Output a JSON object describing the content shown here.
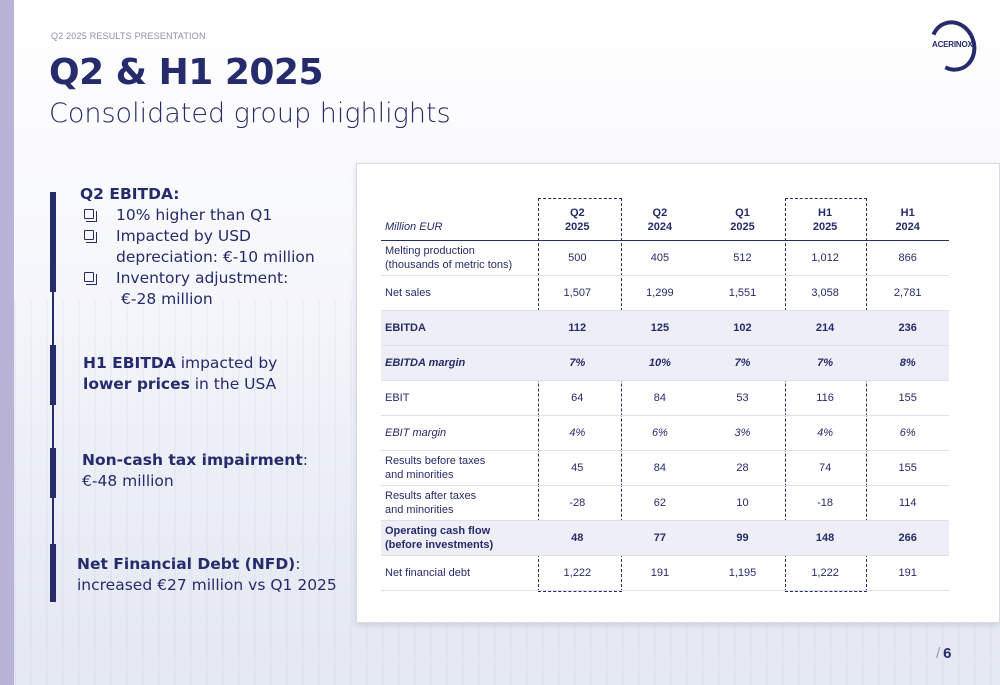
{
  "header": {
    "kicker": "Q2 2025 RESULTS PRESENTATION",
    "title": "Q2 & H1 2025",
    "subtitle": "Consolidated group highlights",
    "logo_text": "ACERINOX"
  },
  "highlights": {
    "q2_ebitda": {
      "heading": "Q2 EBITDA:",
      "bullets": [
        "10% higher than Q1",
        "Impacted by USD",
        "depreciation: €-10 million",
        "Inventory adjustment:",
        "€-28 million"
      ]
    },
    "h1_ebitda": {
      "bold1": "H1 EBITDA",
      "text1": " impacted by",
      "bold2": "lower prices",
      "text2": " in the USA"
    },
    "tax": {
      "bold": "Non-cash tax impairment",
      "colon": ":",
      "line2": "€-48 million"
    },
    "nfd": {
      "bold": "Net Financial Debt (NFD)",
      "colon": ":",
      "line2": "increased €27 million vs Q1 2025"
    }
  },
  "table": {
    "unit_label": "Million EUR",
    "columns": [
      {
        "line1": "Q2",
        "line2": "2025"
      },
      {
        "line1": "Q2",
        "line2": "2024"
      },
      {
        "line1": "Q1",
        "line2": "2025"
      },
      {
        "line1": "H1",
        "line2": "2025"
      },
      {
        "line1": "H1",
        "line2": "2024"
      }
    ],
    "rows": [
      {
        "label1": "Melting production",
        "label2": "(thousands of metric tons)",
        "values": [
          "500",
          "405",
          "512",
          "1,012",
          "866"
        ]
      },
      {
        "label1": "Net sales",
        "label2": "",
        "values": [
          "1,507",
          "1,299",
          "1,551",
          "3,058",
          "2,781"
        ]
      },
      {
        "label1": "EBITDA",
        "label2": "",
        "values": [
          "112",
          "125",
          "102",
          "214",
          "236"
        ]
      },
      {
        "label1": "EBITDA margin",
        "label2": "",
        "values": [
          "7%",
          "10%",
          "7%",
          "7%",
          "8%"
        ]
      },
      {
        "label1": "EBIT",
        "label2": "",
        "values": [
          "64",
          "84",
          "53",
          "116",
          "155"
        ]
      },
      {
        "label1": "EBIT margin",
        "label2": "",
        "values": [
          "4%",
          "6%",
          "3%",
          "4%",
          "6%"
        ]
      },
      {
        "label1": "Results before taxes",
        "label2": "and minorities",
        "values": [
          "45",
          "84",
          "28",
          "74",
          "155"
        ]
      },
      {
        "label1": "Results after taxes",
        "label2": "and minorities",
        "values": [
          "-28",
          "62",
          "10",
          "-18",
          "114"
        ]
      },
      {
        "label1": "Operating cash flow",
        "label2": "(before investments)",
        "values": [
          "48",
          "77",
          "99",
          "148",
          "266"
        ]
      },
      {
        "label1": "Net financial debt",
        "label2": "",
        "values": [
          "1,222",
          "191",
          "1,195",
          "1,222",
          "191"
        ]
      }
    ]
  },
  "footer": {
    "slash": "/",
    "page_number": "6"
  }
}
